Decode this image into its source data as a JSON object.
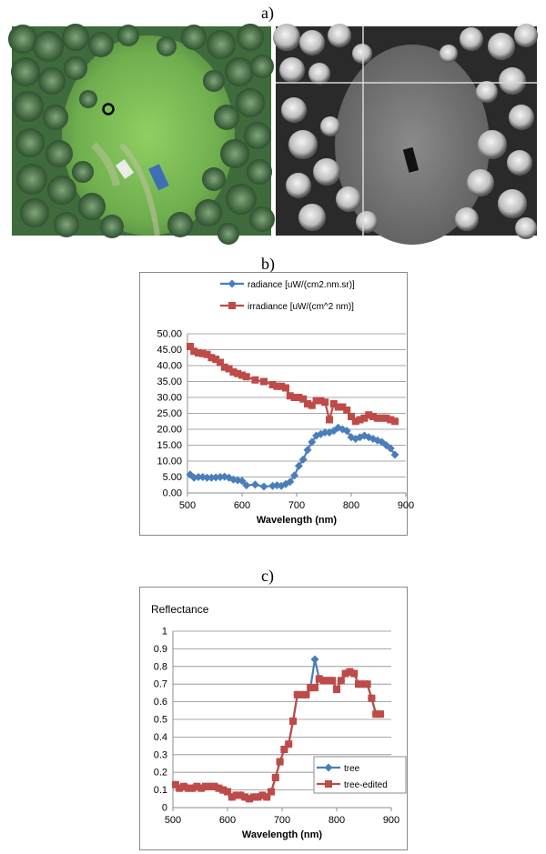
{
  "panels": {
    "a": "a)",
    "b": "b)",
    "c": "c)"
  },
  "images": {
    "rgb": "aerial-rgb-photo",
    "gray": "aerial-grayscale-spectral-image"
  },
  "chart_data": [
    {
      "type": "line",
      "title": "",
      "xlabel": "Wavelength (nm)",
      "ylabel": "",
      "xlim": [
        500,
        900
      ],
      "ylim": [
        0,
        50
      ],
      "x_ticks": [
        "500",
        "600",
        "700",
        "800",
        "900"
      ],
      "y_ticks": [
        "0.00",
        "5.00",
        "10.00",
        "15.00",
        "20.00",
        "25.00",
        "30.00",
        "35.00",
        "40.00",
        "45.00",
        "50.00"
      ],
      "grid": true,
      "legend": "top-right",
      "series": [
        {
          "name": "radiance [uW/(cm2.nm.sr)]",
          "color": "#4a7ebb",
          "marker": "diamond",
          "x": [
            505,
            512,
            520,
            528,
            536,
            544,
            552,
            560,
            568,
            576,
            584,
            592,
            600,
            608,
            624,
            640,
            656,
            664,
            672,
            680,
            688,
            696,
            704,
            712,
            720,
            728,
            736,
            744,
            752,
            760,
            768,
            776,
            784,
            792,
            800,
            808,
            816,
            824,
            832,
            840,
            848,
            856,
            864,
            872,
            880
          ],
          "y": [
            5.8,
            4.8,
            5.0,
            5.0,
            4.8,
            4.8,
            4.9,
            5.0,
            5.1,
            4.8,
            4.2,
            4.0,
            3.8,
            2.4,
            2.6,
            2.0,
            2.2,
            2.4,
            2.2,
            2.8,
            3.5,
            5.5,
            8.5,
            10.5,
            13.5,
            16.0,
            18.0,
            18.5,
            19.0,
            19.0,
            19.5,
            20.5,
            20.0,
            19.5,
            17.5,
            17.0,
            17.5,
            18.0,
            17.5,
            17.0,
            16.5,
            16.0,
            15.0,
            14.0,
            12.0
          ]
        },
        {
          "name": "irradiance [uW/(cm^2 nm)]",
          "color": "#be4b48",
          "marker": "square",
          "x": [
            505,
            512,
            520,
            528,
            536,
            544,
            552,
            560,
            568,
            576,
            584,
            592,
            600,
            608,
            624,
            640,
            656,
            664,
            672,
            680,
            688,
            696,
            704,
            712,
            720,
            728,
            736,
            744,
            752,
            760,
            768,
            776,
            784,
            792,
            800,
            808,
            816,
            824,
            832,
            840,
            848,
            856,
            864,
            872,
            880
          ],
          "y": [
            46.0,
            44.5,
            44.0,
            43.8,
            43.5,
            42.5,
            42.0,
            41.0,
            39.5,
            39.0,
            38.0,
            37.5,
            37.0,
            36.5,
            35.5,
            35.0,
            34.0,
            33.5,
            33.5,
            33.0,
            30.5,
            30.0,
            30.0,
            29.5,
            28.0,
            27.5,
            29.0,
            29.0,
            28.5,
            23.0,
            28.0,
            27.0,
            27.0,
            26.0,
            24.0,
            22.5,
            23.0,
            23.5,
            24.5,
            24.0,
            23.5,
            23.5,
            23.5,
            23.0,
            22.5
          ]
        }
      ]
    },
    {
      "type": "line",
      "title": "Reflectance",
      "xlabel": "Wavelength (nm)",
      "ylabel": "",
      "xlim": [
        500,
        900
      ],
      "ylim": [
        0,
        1
      ],
      "x_ticks": [
        "500",
        "600",
        "700",
        "800",
        "900"
      ],
      "y_ticks": [
        "0",
        "0.1",
        "0.2",
        "0.3",
        "0.4",
        "0.5",
        "0.6",
        "0.7",
        "0.8",
        "0.9",
        "1"
      ],
      "grid": true,
      "legend": "bottom-right",
      "series": [
        {
          "name": "tree",
          "color": "#4a7ebb",
          "marker": "diamond",
          "x": [
            505,
            512,
            520,
            528,
            536,
            544,
            552,
            560,
            568,
            576,
            584,
            592,
            600,
            608,
            616,
            624,
            632,
            640,
            648,
            656,
            664,
            672,
            680,
            688,
            696,
            704,
            712,
            720,
            728,
            736,
            744,
            752,
            760,
            768,
            776,
            784,
            792,
            800,
            808,
            816,
            824,
            832,
            840,
            848,
            856,
            864,
            872,
            880
          ],
          "y": [
            0.13,
            0.11,
            0.12,
            0.11,
            0.11,
            0.12,
            0.11,
            0.12,
            0.12,
            0.12,
            0.11,
            0.1,
            0.09,
            0.06,
            0.07,
            0.07,
            0.06,
            0.05,
            0.06,
            0.06,
            0.07,
            0.06,
            0.09,
            0.17,
            0.26,
            0.33,
            0.36,
            0.49,
            0.64,
            0.64,
            0.64,
            0.68,
            0.84,
            0.73,
            0.72,
            0.72,
            0.72,
            0.67,
            0.72,
            0.76,
            0.77,
            0.76,
            0.7,
            0.7,
            0.7,
            0.62,
            0.53,
            0.53
          ]
        },
        {
          "name": "tree-edited",
          "color": "#be4b48",
          "marker": "square",
          "x": [
            505,
            512,
            520,
            528,
            536,
            544,
            552,
            560,
            568,
            576,
            584,
            592,
            600,
            608,
            616,
            624,
            632,
            640,
            648,
            656,
            664,
            672,
            680,
            688,
            696,
            704,
            712,
            720,
            728,
            736,
            744,
            752,
            760,
            768,
            776,
            784,
            792,
            800,
            808,
            816,
            824,
            832,
            840,
            848,
            856,
            864,
            872,
            880
          ],
          "y": [
            0.13,
            0.11,
            0.12,
            0.11,
            0.11,
            0.12,
            0.11,
            0.12,
            0.12,
            0.12,
            0.11,
            0.1,
            0.09,
            0.06,
            0.07,
            0.07,
            0.06,
            0.05,
            0.06,
            0.06,
            0.07,
            0.06,
            0.09,
            0.17,
            0.26,
            0.33,
            0.36,
            0.49,
            0.64,
            0.64,
            0.64,
            0.68,
            0.68,
            0.73,
            0.72,
            0.72,
            0.72,
            0.67,
            0.72,
            0.76,
            0.77,
            0.76,
            0.7,
            0.7,
            0.7,
            0.62,
            0.53,
            0.53
          ]
        }
      ]
    }
  ]
}
